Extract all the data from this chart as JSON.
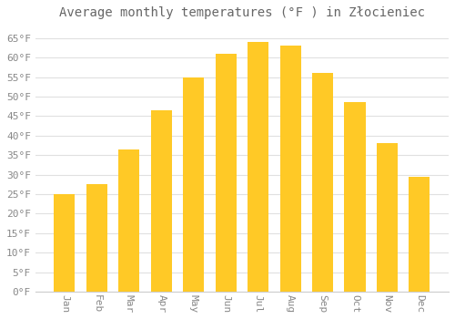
{
  "title": "Average monthly temperatures (°F ) in Złocieniec",
  "months": [
    "Jan",
    "Feb",
    "Mar",
    "Apr",
    "May",
    "Jun",
    "Jul",
    "Aug",
    "Sep",
    "Oct",
    "Nov",
    "Dec"
  ],
  "values": [
    25,
    27.5,
    36.5,
    46.5,
    55,
    61,
    64,
    63,
    56,
    48.5,
    38,
    29.5
  ],
  "bar_color_top": "#FFC926",
  "bar_color_bottom": "#F5A000",
  "bar_edge_color": "none",
  "background_color": "#ffffff",
  "grid_color": "#e0e0e0",
  "text_color": "#888888",
  "title_color": "#666666",
  "ylim": [
    0,
    68
  ],
  "yticks": [
    0,
    5,
    10,
    15,
    20,
    25,
    30,
    35,
    40,
    45,
    50,
    55,
    60,
    65
  ],
  "ylabel_suffix": "°F",
  "title_fontsize": 10,
  "tick_fontsize": 8,
  "font_family": "monospace"
}
